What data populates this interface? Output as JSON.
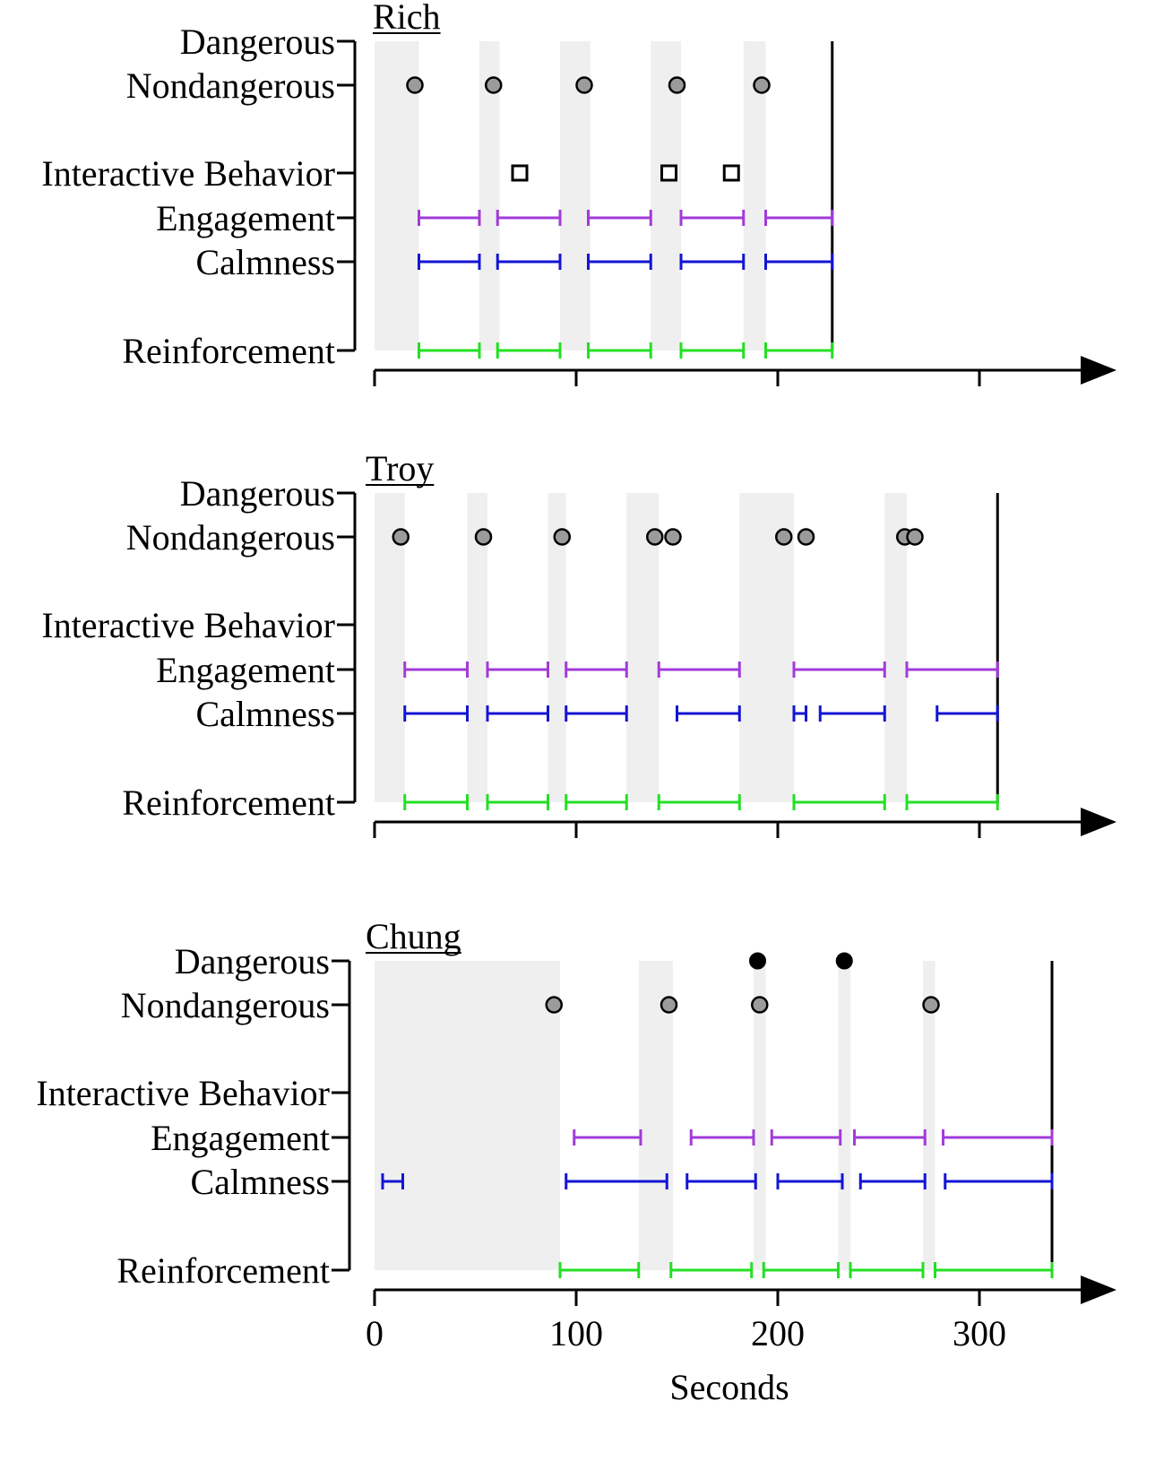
{
  "colors": {
    "background": "#ffffff",
    "shade": "#efefef",
    "axis": "#000000",
    "nondangerous_fill": "#9b9b9b",
    "dangerous_fill": "#000000",
    "interactive_stroke": "#000000",
    "engagement": "#a23bd9",
    "calmness": "#1414d4",
    "reinforcement": "#22e022"
  },
  "chart_data": {
    "type": "timeline",
    "xlabel": "Seconds",
    "x_ticks": [
      0,
      100,
      200,
      300
    ],
    "x_tick_labels": [
      "0",
      "100",
      "200",
      "300"
    ],
    "xlim": [
      0,
      370
    ],
    "row_labels": [
      "Dangerous",
      "Nondangerous",
      "Interactive Behavior",
      "Engagement",
      "Calmness",
      "Reinforcement"
    ],
    "panels": [
      {
        "title": "Rich",
        "session_end": 227,
        "shaded_intervals": [
          [
            0,
            22
          ],
          [
            52,
            62
          ],
          [
            92,
            107
          ],
          [
            137,
            152
          ],
          [
            183,
            194
          ]
        ],
        "dangerous": [],
        "nondangerous": [
          20,
          59,
          104,
          150,
          192
        ],
        "interactive_behavior": [
          72,
          146,
          177
        ],
        "engagement": [
          [
            22,
            52
          ],
          [
            61,
            92
          ],
          [
            106,
            137
          ],
          [
            152,
            183
          ],
          [
            194,
            227
          ]
        ],
        "calmness": [
          [
            22,
            52
          ],
          [
            61,
            92
          ],
          [
            106,
            137
          ],
          [
            152,
            183
          ],
          [
            194,
            227
          ]
        ],
        "reinforcement": [
          [
            22,
            52
          ],
          [
            61,
            92
          ],
          [
            106,
            137
          ],
          [
            152,
            183
          ],
          [
            194,
            227
          ]
        ]
      },
      {
        "title": "Troy",
        "session_end": 309,
        "shaded_intervals": [
          [
            0,
            15
          ],
          [
            46,
            56
          ],
          [
            86,
            95
          ],
          [
            125,
            141
          ],
          [
            181,
            208
          ],
          [
            253,
            264
          ]
        ],
        "dangerous": [],
        "nondangerous": [
          13,
          54,
          93,
          139,
          148,
          203,
          214,
          263,
          268
        ],
        "interactive_behavior": [],
        "engagement": [
          [
            15,
            46
          ],
          [
            56,
            86
          ],
          [
            95,
            125
          ],
          [
            141,
            181
          ],
          [
            208,
            253
          ],
          [
            264,
            309
          ]
        ],
        "calmness": [
          [
            15,
            46
          ],
          [
            56,
            86
          ],
          [
            95,
            125
          ],
          [
            150,
            181
          ],
          [
            208,
            214
          ],
          [
            221,
            253
          ],
          [
            279,
            309
          ]
        ],
        "reinforcement": [
          [
            15,
            46
          ],
          [
            56,
            86
          ],
          [
            95,
            125
          ],
          [
            141,
            181
          ],
          [
            208,
            253
          ],
          [
            264,
            309
          ]
        ]
      },
      {
        "title": "Chung",
        "session_end": 336,
        "shaded_intervals": [
          [
            0,
            92
          ],
          [
            131,
            148
          ],
          [
            188,
            194
          ],
          [
            230,
            236
          ],
          [
            272,
            278
          ]
        ],
        "dangerous": [
          190,
          233
        ],
        "nondangerous": [
          89,
          146,
          191,
          276
        ],
        "interactive_behavior": [],
        "engagement": [
          [
            99,
            132
          ],
          [
            157,
            188
          ],
          [
            197,
            231
          ],
          [
            238,
            273
          ],
          [
            282,
            336
          ]
        ],
        "calmness": [
          [
            4,
            14
          ],
          [
            95,
            145
          ],
          [
            155,
            189
          ],
          [
            200,
            232
          ],
          [
            241,
            273
          ],
          [
            283,
            336
          ]
        ],
        "reinforcement": [
          [
            92,
            131
          ],
          [
            147,
            187
          ],
          [
            193,
            230
          ],
          [
            236,
            272
          ],
          [
            278,
            336
          ]
        ]
      }
    ]
  }
}
